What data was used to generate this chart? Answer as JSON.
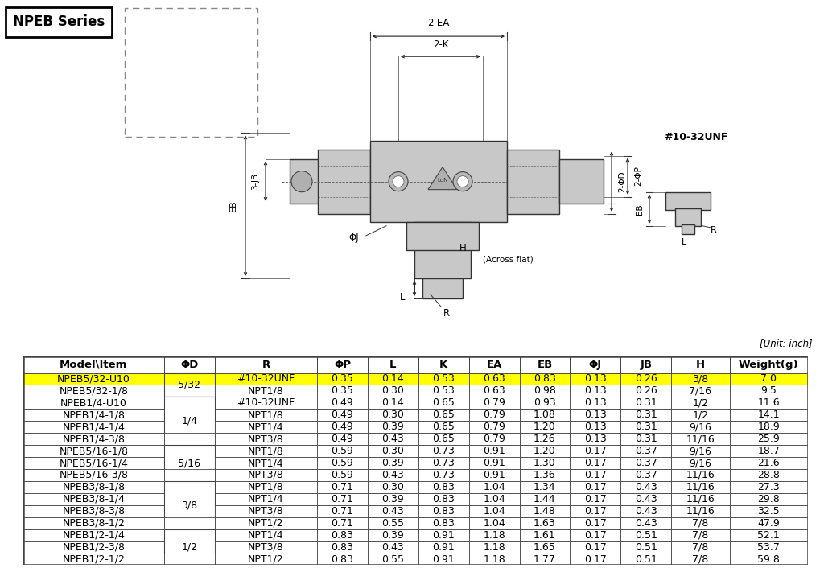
{
  "series_label": "NPEB Series",
  "unit_note": "[Unit: inch]",
  "columns": [
    "Model\\Item",
    "ΦD",
    "R",
    "ΦP",
    "L",
    "K",
    "EA",
    "EB",
    "ΦJ",
    "JB",
    "H",
    "Weight(g)"
  ],
  "col_widths": [
    1.45,
    0.52,
    1.05,
    0.52,
    0.52,
    0.52,
    0.52,
    0.52,
    0.52,
    0.52,
    0.6,
    0.8
  ],
  "rows": [
    [
      "NPEB5/32-U10",
      "5/32",
      "#10-32UNF",
      "0.35",
      "0.14",
      "0.53",
      "0.63",
      "0.83",
      "0.13",
      "0.26",
      "3/8",
      "7.0"
    ],
    [
      "NPEB5/32-1/8",
      "",
      "NPT1/8",
      "0.35",
      "0.30",
      "0.53",
      "0.63",
      "0.98",
      "0.13",
      "0.26",
      "7/16",
      "9.5"
    ],
    [
      "NPEB1/4-U10",
      "",
      "#10-32UNF",
      "0.49",
      "0.14",
      "0.65",
      "0.79",
      "0.93",
      "0.13",
      "0.31",
      "1/2",
      "11.6"
    ],
    [
      "NPEB1/4-1/8",
      "1/4",
      "NPT1/8",
      "0.49",
      "0.30",
      "0.65",
      "0.79",
      "1.08",
      "0.13",
      "0.31",
      "1/2",
      "14.1"
    ],
    [
      "NPEB1/4-1/4",
      "",
      "NPT1/4",
      "0.49",
      "0.39",
      "0.65",
      "0.79",
      "1.20",
      "0.13",
      "0.31",
      "9/16",
      "18.9"
    ],
    [
      "NPEB1/4-3/8",
      "",
      "NPT3/8",
      "0.49",
      "0.43",
      "0.65",
      "0.79",
      "1.26",
      "0.13",
      "0.31",
      "11/16",
      "25.9"
    ],
    [
      "NPEB5/16-1/8",
      "",
      "NPT1/8",
      "0.59",
      "0.30",
      "0.73",
      "0.91",
      "1.20",
      "0.17",
      "0.37",
      "9/16",
      "18.7"
    ],
    [
      "NPEB5/16-1/4",
      "5/16",
      "NPT1/4",
      "0.59",
      "0.39",
      "0.73",
      "0.91",
      "1.30",
      "0.17",
      "0.37",
      "9/16",
      "21.6"
    ],
    [
      "NPEB5/16-3/8",
      "",
      "NPT3/8",
      "0.59",
      "0.43",
      "0.73",
      "0.91",
      "1.36",
      "0.17",
      "0.37",
      "11/16",
      "28.8"
    ],
    [
      "NPEB3/8-1/8",
      "",
      "NPT1/8",
      "0.71",
      "0.30",
      "0.83",
      "1.04",
      "1.34",
      "0.17",
      "0.43",
      "11/16",
      "27.3"
    ],
    [
      "NPEB3/8-1/4",
      "3/8",
      "NPT1/4",
      "0.71",
      "0.39",
      "0.83",
      "1.04",
      "1.44",
      "0.17",
      "0.43",
      "11/16",
      "29.8"
    ],
    [
      "NPEB3/8-3/8",
      "",
      "NPT3/8",
      "0.71",
      "0.43",
      "0.83",
      "1.04",
      "1.48",
      "0.17",
      "0.43",
      "11/16",
      "32.5"
    ],
    [
      "NPEB3/8-1/2",
      "",
      "NPT1/2",
      "0.71",
      "0.55",
      "0.83",
      "1.04",
      "1.63",
      "0.17",
      "0.43",
      "7/8",
      "47.9"
    ],
    [
      "NPEB1/2-1/4",
      "",
      "NPT1/4",
      "0.83",
      "0.39",
      "0.91",
      "1.18",
      "1.61",
      "0.17",
      "0.51",
      "7/8",
      "52.1"
    ],
    [
      "NPEB1/2-3/8",
      "1/2",
      "NPT3/8",
      "0.83",
      "0.43",
      "0.91",
      "1.18",
      "1.65",
      "0.17",
      "0.51",
      "7/8",
      "53.7"
    ],
    [
      "NPEB1/2-1/2",
      "",
      "NPT1/2",
      "0.83",
      "0.55",
      "0.91",
      "1.18",
      "1.77",
      "0.17",
      "0.51",
      "7/8",
      "59.8"
    ]
  ],
  "highlight_row": 0,
  "highlight_color": "#FFFF00",
  "border_color": "#444444",
  "header_font_size": 9.5,
  "cell_font_size": 9.0,
  "background_color": "#FFFFFF",
  "merged_col_groups": [
    {
      "value": "5/32",
      "rows": [
        0,
        1
      ]
    },
    {
      "value": "1/4",
      "rows": [
        2,
        3,
        4,
        5
      ]
    },
    {
      "value": "5/16",
      "rows": [
        6,
        7,
        8
      ]
    },
    {
      "value": "3/8",
      "rows": [
        9,
        10,
        11,
        12
      ]
    },
    {
      "value": "1/2",
      "rows": [
        13,
        14,
        15
      ]
    }
  ]
}
